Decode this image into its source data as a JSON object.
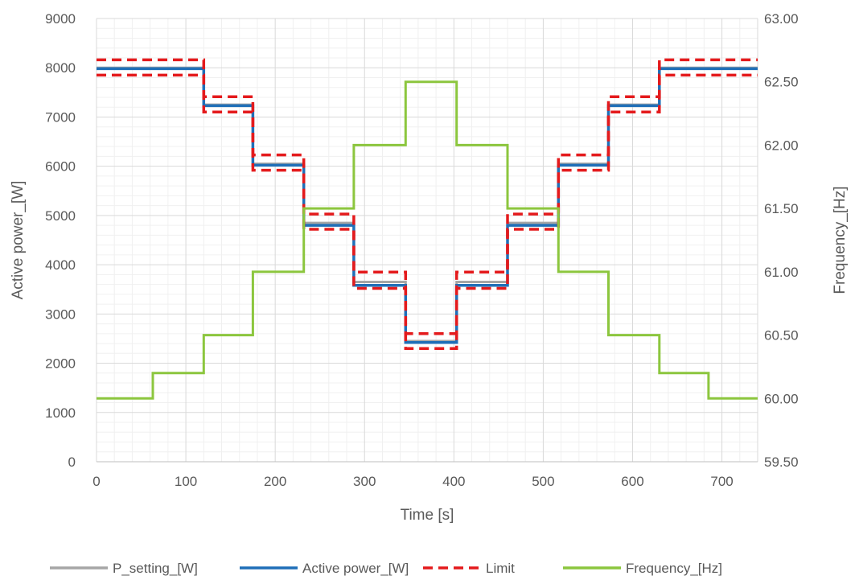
{
  "chart_data": {
    "type": "line",
    "title": "",
    "xlabel": "Time [s]",
    "ylabel": "Active power_[W]",
    "y2label": "Frequency_[Hz]",
    "xlim": [
      0,
      740
    ],
    "ylim": [
      0,
      9000
    ],
    "y2lim": [
      59.5,
      63.0
    ],
    "x_ticks": [
      0,
      100,
      200,
      300,
      400,
      500,
      600,
      700
    ],
    "y_ticks": [
      0,
      1000,
      2000,
      3000,
      4000,
      5000,
      6000,
      7000,
      8000,
      9000
    ],
    "y2_ticks": [
      "59.50",
      "60.00",
      "60.50",
      "61.00",
      "61.50",
      "62.00",
      "62.50",
      "63.00"
    ],
    "grid": true,
    "legend_position": "bottom",
    "series": [
      {
        "name": "P_setting_[W]",
        "axis": "left",
        "style": "solid",
        "color": "#a6a6a6",
        "x": [
          0,
          120,
          120,
          175,
          175,
          232,
          232,
          288,
          288,
          346,
          346,
          403,
          403,
          460,
          460,
          517,
          517,
          573,
          573,
          630,
          630,
          740
        ],
        "y": [
          8000,
          8000,
          7250,
          7250,
          6050,
          6050,
          4850,
          4850,
          3650,
          3650,
          2450,
          2450,
          3650,
          3650,
          4850,
          4850,
          6050,
          6050,
          7250,
          7250,
          8000,
          8000
        ]
      },
      {
        "name": "Active power_[W]",
        "axis": "left",
        "style": "solid",
        "color": "#1f6fb8",
        "x": [
          0,
          120,
          120,
          175,
          175,
          232,
          232,
          288,
          288,
          346,
          346,
          403,
          403,
          460,
          460,
          517,
          517,
          573,
          573,
          630,
          630,
          740
        ],
        "y": [
          7980,
          7980,
          7230,
          7230,
          6020,
          6020,
          4800,
          4800,
          3580,
          3580,
          2420,
          2420,
          3580,
          3580,
          4800,
          4800,
          6020,
          6020,
          7230,
          7230,
          7980,
          7980
        ]
      },
      {
        "name": "Limit",
        "axis": "left",
        "style": "dashed",
        "color": "#e41a1c",
        "x": [
          0,
          120,
          120,
          175,
          175,
          232,
          232,
          288,
          288,
          346,
          346,
          403,
          403,
          460,
          460,
          517,
          517,
          573,
          573,
          630,
          630,
          740
        ],
        "y": [
          8160,
          8160,
          7410,
          7410,
          6230,
          6230,
          5030,
          5030,
          3850,
          3850,
          2600,
          2600,
          3850,
          3850,
          5030,
          5030,
          6230,
          6230,
          7410,
          7410,
          8160,
          8160
        ]
      },
      {
        "name": "Limit",
        "axis": "left",
        "style": "dashed",
        "color": "#e41a1c",
        "x": [
          0,
          120,
          120,
          175,
          175,
          232,
          232,
          288,
          288,
          346,
          346,
          403,
          403,
          460,
          460,
          517,
          517,
          573,
          573,
          630,
          630,
          740
        ],
        "y": [
          7850,
          7850,
          7100,
          7100,
          5920,
          5920,
          4720,
          4720,
          3520,
          3520,
          2300,
          2300,
          3520,
          3520,
          4720,
          4720,
          5920,
          5920,
          7100,
          7100,
          7850,
          7850
        ]
      },
      {
        "name": "Frequency_[Hz]",
        "axis": "right",
        "style": "solid",
        "color": "#8cc63e",
        "x": [
          0,
          63,
          63,
          120,
          120,
          175,
          175,
          232,
          232,
          288,
          288,
          346,
          346,
          403,
          403,
          460,
          460,
          517,
          517,
          573,
          573,
          630,
          630,
          685,
          685,
          740
        ],
        "y": [
          60.0,
          60.0,
          60.2,
          60.2,
          60.5,
          60.5,
          61.0,
          61.0,
          61.5,
          61.5,
          62.0,
          62.0,
          62.5,
          62.5,
          62.0,
          62.0,
          61.5,
          61.5,
          61.0,
          61.0,
          60.5,
          60.5,
          60.2,
          60.2,
          60.0,
          60.0
        ]
      }
    ],
    "legend": [
      {
        "label": "P_setting_[W]",
        "color": "#a6a6a6",
        "style": "solid"
      },
      {
        "label": "Active power_[W]",
        "color": "#1f6fb8",
        "style": "solid"
      },
      {
        "label": "Limit",
        "color": "#e41a1c",
        "style": "dashed"
      },
      {
        "label": "Frequency_[Hz]",
        "color": "#8cc63e",
        "style": "solid"
      }
    ]
  }
}
